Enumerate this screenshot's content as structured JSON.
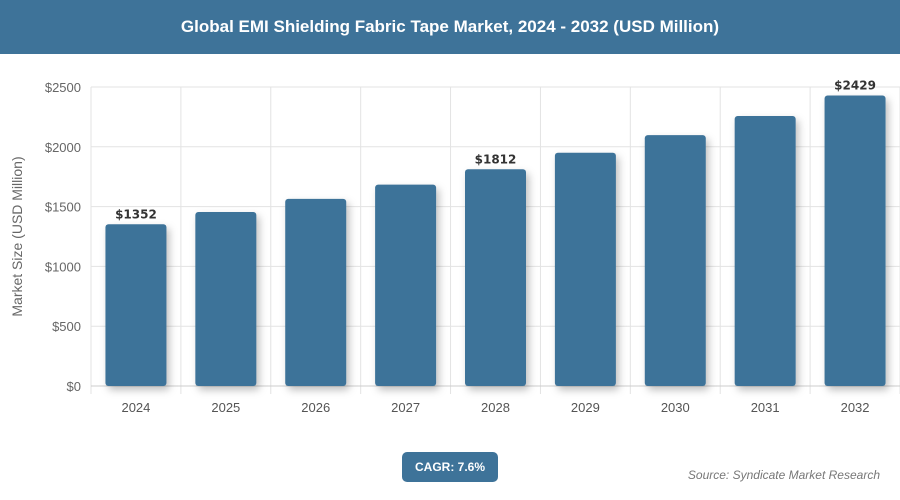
{
  "header": {
    "title": "Global EMI Shielding Fabric Tape Market, 2024 - 2032 (USD Million)"
  },
  "chart_data": {
    "type": "bar",
    "title": "Global EMI Shielding Fabric Tape Market, 2024 - 2032 (USD Million)",
    "xlabel": "",
    "ylabel": "Market Size (USD Million)",
    "categories": [
      "2024",
      "2025",
      "2026",
      "2027",
      "2028",
      "2029",
      "2030",
      "2031",
      "2032"
    ],
    "values": [
      1352,
      1455,
      1565,
      1684,
      1812,
      1950,
      2098,
      2258,
      2429
    ],
    "data_labels": {
      "0": "$1352",
      "4": "$1812",
      "8": "$2429"
    },
    "ylim": [
      0,
      2500
    ],
    "yticks": [
      {
        "v": 0,
        "label": "$0"
      },
      {
        "v": 500,
        "label": "$500"
      },
      {
        "v": 1000,
        "label": "$1000"
      },
      {
        "v": 1500,
        "label": "$1500"
      },
      {
        "v": 2000,
        "label": "$2000"
      },
      {
        "v": 2500,
        "label": "$2500"
      }
    ],
    "grid": true,
    "bar_color": "#3e7399"
  },
  "cagr": "CAGR: 7.6%",
  "source": "Source: Syndicate Market Research"
}
